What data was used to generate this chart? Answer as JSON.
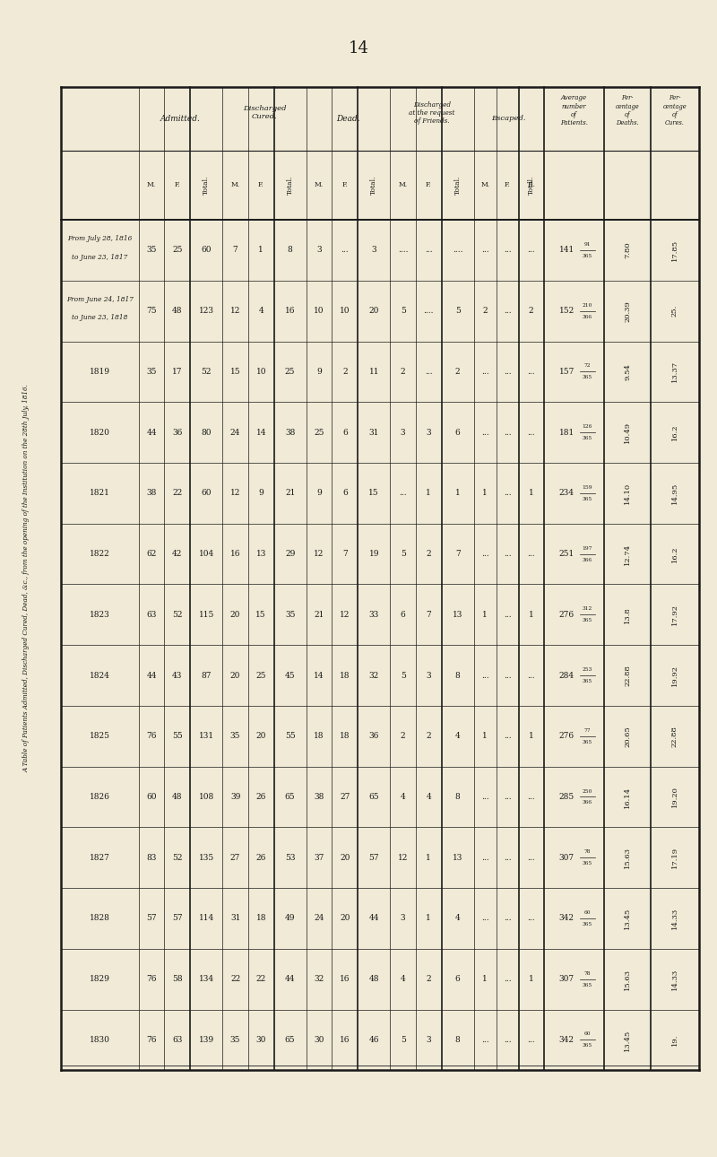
{
  "page_number": "14",
  "title": "A Table of Patients Admitted, Discharged Cured, Dead, &c., from the opening of the Institution on the 28th July, 1816.",
  "background_color": "#f0ead6",
  "text_color": "#1a1a1a",
  "rows": [
    {
      "year": "From July 28, 1816\nto June 23, 1817",
      "adm_m": "35",
      "adm_f": "25",
      "adm_t": "60",
      "dc_m": "7",
      "dc_f": "1",
      "dc_t": "8",
      "dead_m": "3",
      "dead_f": "...",
      "dead_t": "3",
      "daf_m": "....",
      "daf_f": "...",
      "daf_t": "....",
      "esc_m": "...",
      "esc_f": "...",
      "esc_t": "...",
      "avg_num": "141",
      "avg_frac": "91/365",
      "pct_d": "7.80",
      "pct_c": "17.85"
    },
    {
      "year": "From June 24, 1817\nto June 23, 1818",
      "adm_m": "75",
      "adm_f": "48",
      "adm_t": "123",
      "dc_m": "12",
      "dc_f": "4",
      "dc_t": "16",
      "dead_m": "10",
      "dead_f": "10",
      "dead_t": "20",
      "daf_m": "5",
      "daf_f": "....",
      "daf_t": "5",
      "esc_m": "2",
      "esc_f": "...",
      "esc_t": "2",
      "avg_num": "152",
      "avg_frac": "210/366",
      "pct_d": "20.39",
      "pct_c": "25."
    },
    {
      "year": "1819",
      "adm_m": "35",
      "adm_f": "17",
      "adm_t": "52",
      "dc_m": "15",
      "dc_f": "10",
      "dc_t": "25",
      "dead_m": "9",
      "dead_f": "2",
      "dead_t": "11",
      "daf_m": "2",
      "daf_f": "...",
      "daf_t": "2",
      "esc_m": "...",
      "esc_f": "...",
      "esc_t": "...",
      "avg_num": "157",
      "avg_frac": "72/365",
      "pct_d": "9.54",
      "pct_c": "13.37"
    },
    {
      "year": "1820",
      "adm_m": "44",
      "adm_f": "36",
      "adm_t": "80",
      "dc_m": "24",
      "dc_f": "14",
      "dc_t": "38",
      "dead_m": "25",
      "dead_f": "6",
      "dead_t": "31",
      "daf_m": "3",
      "daf_f": "3",
      "daf_t": "6",
      "esc_m": "...",
      "esc_f": "...",
      "esc_t": "...",
      "avg_num": "181",
      "avg_frac": "126/365",
      "pct_d": "10.49",
      "pct_c": "16.2"
    },
    {
      "year": "1821",
      "adm_m": "38",
      "adm_f": "22",
      "adm_t": "60",
      "dc_m": "12",
      "dc_f": "9",
      "dc_t": "21",
      "dead_m": "9",
      "dead_f": "6",
      "dead_t": "15",
      "daf_m": "...",
      "daf_f": "1",
      "daf_t": "1",
      "esc_m": "1",
      "esc_f": "...",
      "esc_t": "1",
      "avg_num": "234",
      "avg_frac": "159/365",
      "pct_d": "14.10",
      "pct_c": "14.95"
    },
    {
      "year": "1822",
      "adm_m": "62",
      "adm_f": "42",
      "adm_t": "104",
      "dc_m": "16",
      "dc_f": "13",
      "dc_t": "29",
      "dead_m": "12",
      "dead_f": "7",
      "dead_t": "19",
      "daf_m": "5",
      "daf_f": "2",
      "daf_t": "7",
      "esc_m": "...",
      "esc_f": "...",
      "esc_t": "...",
      "avg_num": "251",
      "avg_frac": "197/366",
      "pct_d": "12.74",
      "pct_c": "16.2"
    },
    {
      "year": "1823",
      "adm_m": "63",
      "adm_f": "52",
      "adm_t": "115",
      "dc_m": "20",
      "dc_f": "15",
      "dc_t": "35",
      "dead_m": "21",
      "dead_f": "12",
      "dead_t": "33",
      "daf_m": "6",
      "daf_f": "7",
      "daf_t": "13",
      "esc_m": "1",
      "esc_f": "...",
      "esc_t": "1",
      "avg_num": "276",
      "avg_frac": "312/365",
      "pct_d": "13.8",
      "pct_c": "17.92"
    },
    {
      "year": "1824",
      "adm_m": "44",
      "adm_f": "43",
      "adm_t": "87",
      "dc_m": "20",
      "dc_f": "25",
      "dc_t": "45",
      "dead_m": "14",
      "dead_f": "18",
      "dead_t": "32",
      "daf_m": "5",
      "daf_f": "3",
      "daf_t": "8",
      "esc_m": "...",
      "esc_f": "...",
      "esc_t": "...",
      "avg_num": "284",
      "avg_frac": "253/365",
      "pct_d": "22.88",
      "pct_c": "19.92"
    },
    {
      "year": "1825",
      "adm_m": "76",
      "adm_f": "55",
      "adm_t": "131",
      "dc_m": "35",
      "dc_f": "20",
      "dc_t": "55",
      "dead_m": "18",
      "dead_f": "18",
      "dead_t": "36",
      "daf_m": "2",
      "daf_f": "2",
      "daf_t": "4",
      "esc_m": "1",
      "esc_f": "...",
      "esc_t": "1",
      "avg_num": "276",
      "avg_frac": "77/365",
      "pct_d": "20.65",
      "pct_c": "22.88"
    },
    {
      "year": "1826",
      "adm_m": "60",
      "adm_f": "48",
      "adm_t": "108",
      "dc_m": "39",
      "dc_f": "26",
      "dc_t": "65",
      "dead_m": "38",
      "dead_f": "27",
      "dead_t": "65",
      "daf_m": "4",
      "daf_f": "4",
      "daf_t": "8",
      "esc_m": "...",
      "esc_f": "...",
      "esc_t": "...",
      "avg_num": "285",
      "avg_frac": "250/366",
      "pct_d": "16.14",
      "pct_c": "19.20"
    },
    {
      "year": "1827",
      "adm_m": "83",
      "adm_f": "52",
      "adm_t": "135",
      "dc_m": "27",
      "dc_f": "26",
      "dc_t": "53",
      "dead_m": "37",
      "dead_f": "20",
      "dead_t": "57",
      "daf_m": "12",
      "daf_f": "1",
      "daf_t": "13",
      "esc_m": "...",
      "esc_f": "...",
      "esc_t": "...",
      "avg_num": "307",
      "avg_frac": "78/365",
      "pct_d": "15.63",
      "pct_c": "17.19"
    },
    {
      "year": "1828",
      "adm_m": "57",
      "adm_f": "57",
      "adm_t": "114",
      "dc_m": "31",
      "dc_f": "18",
      "dc_t": "49",
      "dead_m": "24",
      "dead_f": "20",
      "dead_t": "44",
      "daf_m": "3",
      "daf_f": "1",
      "daf_t": "4",
      "esc_m": "...",
      "esc_f": "...",
      "esc_t": "...",
      "avg_num": "342",
      "avg_frac": "60/365",
      "pct_d": "13.45",
      "pct_c": "14.33"
    },
    {
      "year": "1829",
      "adm_m": "76",
      "adm_f": "58",
      "adm_t": "134",
      "dc_m": "22",
      "dc_f": "22",
      "dc_t": "44",
      "dead_m": "32",
      "dead_f": "16",
      "dead_t": "48",
      "daf_m": "4",
      "daf_f": "2",
      "daf_t": "6",
      "esc_m": "1",
      "esc_f": "...",
      "esc_t": "1",
      "avg_num": "307",
      "avg_frac": "78/365",
      "pct_d": "15.63",
      "pct_c": "14.33"
    },
    {
      "year": "1830",
      "adm_m": "76",
      "adm_f": "63",
      "adm_t": "139",
      "dc_m": "35",
      "dc_f": "30",
      "dc_t": "65",
      "dead_m": "30",
      "dead_f": "16",
      "dead_t": "46",
      "daf_m": "5",
      "daf_f": "3",
      "daf_t": "8",
      "esc_m": "...",
      "esc_f": "...",
      "esc_t": "...",
      "avg_num": "342",
      "avg_frac": "60/365",
      "pct_d": "13.45",
      "pct_c": "19."
    }
  ]
}
